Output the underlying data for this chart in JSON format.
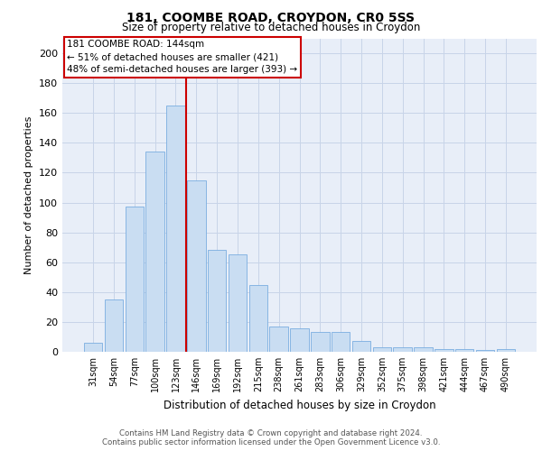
{
  "title1": "181, COOMBE ROAD, CROYDON, CR0 5SS",
  "title2": "Size of property relative to detached houses in Croydon",
  "xlabel": "Distribution of detached houses by size in Croydon",
  "ylabel": "Number of detached properties",
  "bar_labels": [
    "31sqm",
    "54sqm",
    "77sqm",
    "100sqm",
    "123sqm",
    "146sqm",
    "169sqm",
    "192sqm",
    "215sqm",
    "238sqm",
    "261sqm",
    "283sqm",
    "306sqm",
    "329sqm",
    "352sqm",
    "375sqm",
    "398sqm",
    "421sqm",
    "444sqm",
    "467sqm",
    "490sqm"
  ],
  "bar_values": [
    6,
    35,
    97,
    134,
    165,
    115,
    68,
    65,
    45,
    17,
    16,
    13,
    13,
    7,
    3,
    3,
    3,
    2,
    2,
    1,
    2
  ],
  "bar_color": "#c9ddf2",
  "bar_edge_color": "#7aade0",
  "annotation_box_text": "181 COOMBE ROAD: 144sqm\n← 51% of detached houses are smaller (421)\n48% of semi-detached houses are larger (393) →",
  "vline_color": "#cc0000",
  "annotation_box_color": "#ffffff",
  "annotation_box_edge_color": "#cc0000",
  "grid_color": "#c8d4e8",
  "background_color": "#e8eef8",
  "ylim": [
    0,
    210
  ],
  "yticks": [
    0,
    20,
    40,
    60,
    80,
    100,
    120,
    140,
    160,
    180,
    200
  ],
  "footnote1": "Contains HM Land Registry data © Crown copyright and database right 2024.",
  "footnote2": "Contains public sector information licensed under the Open Government Licence v3.0."
}
